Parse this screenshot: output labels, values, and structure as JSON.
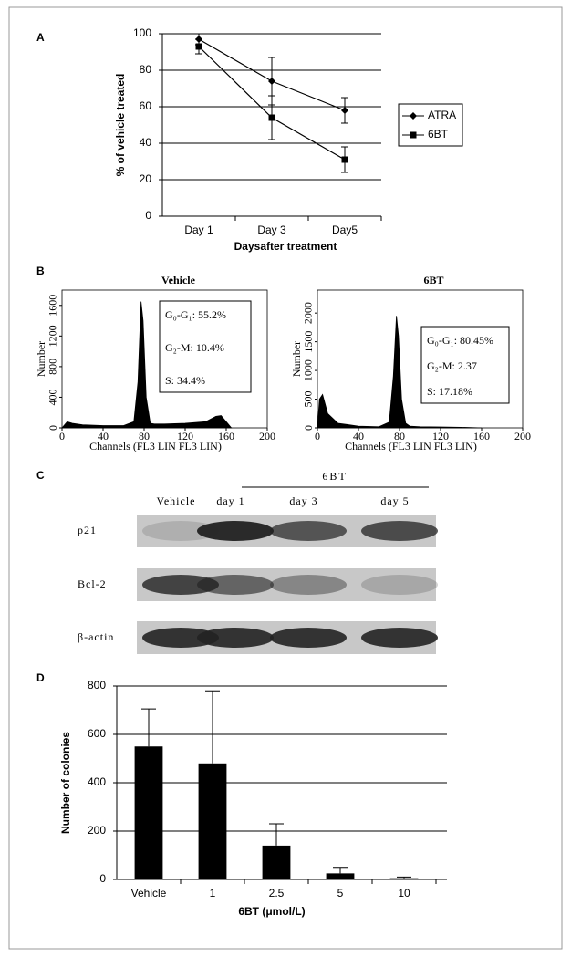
{
  "panel_labels": [
    "A",
    "B",
    "C",
    "D"
  ],
  "chart_data": [
    {
      "type": "line",
      "categories": [
        "Day 1",
        "Day 3",
        "Day5"
      ],
      "series": [
        {
          "name": "ATRA",
          "color": "#000000",
          "marker": "diamond",
          "values": [
            97,
            74,
            58
          ],
          "errors": [
            3,
            13,
            7
          ]
        },
        {
          "name": "6BT",
          "color": "#000000",
          "marker": "square",
          "values": [
            93,
            54,
            31
          ],
          "errors": [
            4,
            12,
            7
          ]
        }
      ],
      "ylim": [
        0,
        100
      ],
      "yticks": [
        0,
        20,
        40,
        60,
        80,
        100
      ],
      "grid": true,
      "y_label": "% of vehicle treated",
      "x_label": "Daysafter treatment",
      "legend": "right"
    },
    {
      "type": "flow",
      "title": "Vehicle",
      "x": [
        0,
        5,
        10,
        20,
        40,
        60,
        70,
        74,
        77,
        79,
        82,
        86,
        90,
        100,
        120,
        140,
        150,
        155,
        160,
        165
      ],
      "values": [
        0,
        80,
        60,
        40,
        30,
        30,
        80,
        600,
        1650,
        1400,
        400,
        60,
        50,
        50,
        60,
        80,
        150,
        160,
        80,
        0
      ],
      "xlim": [
        0,
        200
      ],
      "xticks": [
        0,
        40,
        80,
        120,
        160,
        200
      ],
      "ylim": [
        0,
        1800
      ],
      "yticks": [
        0,
        400,
        800,
        1200,
        1600
      ],
      "y_label": "Number",
      "x_label": "Channels (FL3 LIN  FL3 LIN)",
      "annotations": [
        "G₀-G₁: 55.2%",
        "G₂-M: 10.4%",
        "S: 34.4%"
      ]
    },
    {
      "type": "flow",
      "title": "6BT",
      "x": [
        0,
        2,
        5,
        10,
        20,
        40,
        60,
        70,
        74,
        77,
        79,
        82,
        86,
        90,
        100,
        120,
        140,
        160
      ],
      "values": [
        0,
        500,
        580,
        250,
        80,
        30,
        20,
        100,
        900,
        1950,
        1600,
        500,
        80,
        30,
        20,
        15,
        10,
        0
      ],
      "xlim": [
        0,
        200
      ],
      "xticks": [
        0,
        40,
        80,
        120,
        160,
        200
      ],
      "ylim": [
        0,
        2400
      ],
      "yticks": [
        0,
        500,
        1000,
        1500,
        2000
      ],
      "y_label": "Number",
      "x_label": "Channels (FL3 LIN  FL3 LIN)",
      "annotations": [
        "G₀-G₁: 80.45%",
        "G₂-M: 2.37",
        "S: 17.18%"
      ]
    },
    {
      "type": "bar",
      "categories": [
        "Vehicle",
        "1",
        "2.5",
        "5",
        "10"
      ],
      "values": [
        550,
        480,
        140,
        25,
        5
      ],
      "errors": [
        155,
        300,
        90,
        25,
        5
      ],
      "color": "#000000",
      "ylim": [
        0,
        800
      ],
      "yticks": [
        0,
        200,
        400,
        600,
        800
      ],
      "grid": true,
      "y_label": "Number of colonies",
      "x_label": "6BT (μmol/L)"
    }
  ],
  "blot": {
    "treatment": "6BT",
    "lanes": [
      "Vehicle",
      "day 1",
      "day 3",
      "day 5"
    ],
    "rows": [
      "p21",
      "Bcl-2",
      "β-actin"
    ]
  }
}
